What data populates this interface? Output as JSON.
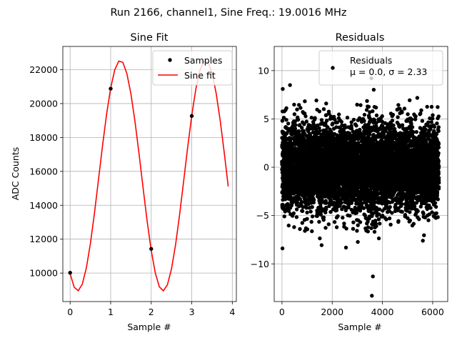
{
  "chart_data": {
    "suptitle": "Run 2166, channel1, Sine Freq.: 19.0016 MHz",
    "charts": [
      {
        "type": "line",
        "title": "Sine Fit",
        "xlabel": "Sample #",
        "ylabel": "ADC Counts",
        "xlim": [
          -0.18,
          4.1
        ],
        "ylim": [
          8320,
          23370
        ],
        "xticks": [
          0,
          1,
          2,
          3,
          4
        ],
        "yticks": [
          10000,
          12000,
          14000,
          16000,
          18000,
          20000,
          22000
        ],
        "grid": true,
        "legend_position": "top-right",
        "legend": [
          "Samples",
          "Sine fit"
        ],
        "samples": {
          "name": "Samples",
          "x": [
            0,
            1,
            2,
            3
          ],
          "y": [
            10020,
            20880,
            11430,
            19270
          ]
        },
        "fit": {
          "name": "Sine fit",
          "amplitude": 6800,
          "offset": 15750,
          "period": 2.105,
          "phase_x": 0.711,
          "x_start": 0,
          "x_end": 3.9,
          "step": 0.1
        }
      },
      {
        "type": "scatter",
        "title": "Residuals",
        "xlabel": "Sample #",
        "ylabel": "",
        "xlim": [
          -310,
          6600
        ],
        "ylim": [
          -13.9,
          12.5
        ],
        "xticks": [
          0,
          2000,
          4000,
          6000
        ],
        "yticks": [
          -10,
          -5,
          0,
          5,
          10
        ],
        "grid": true,
        "legend_position": "top-right",
        "legend": [
          "Residuals",
          "μ = 0.0, σ = 2.33"
        ],
        "n_points": 6250,
        "mu": 0.0,
        "sigma": 2.33,
        "extremes": [
          {
            "x": 3580,
            "y": -13.3
          },
          {
            "x": 3560,
            "y": 9.2
          },
          {
            "x": 20,
            "y": -8.4
          },
          {
            "x": 30,
            "y": 8.1
          },
          {
            "x": 320,
            "y": 8.5
          },
          {
            "x": 3620,
            "y": -11.3
          }
        ]
      }
    ]
  }
}
